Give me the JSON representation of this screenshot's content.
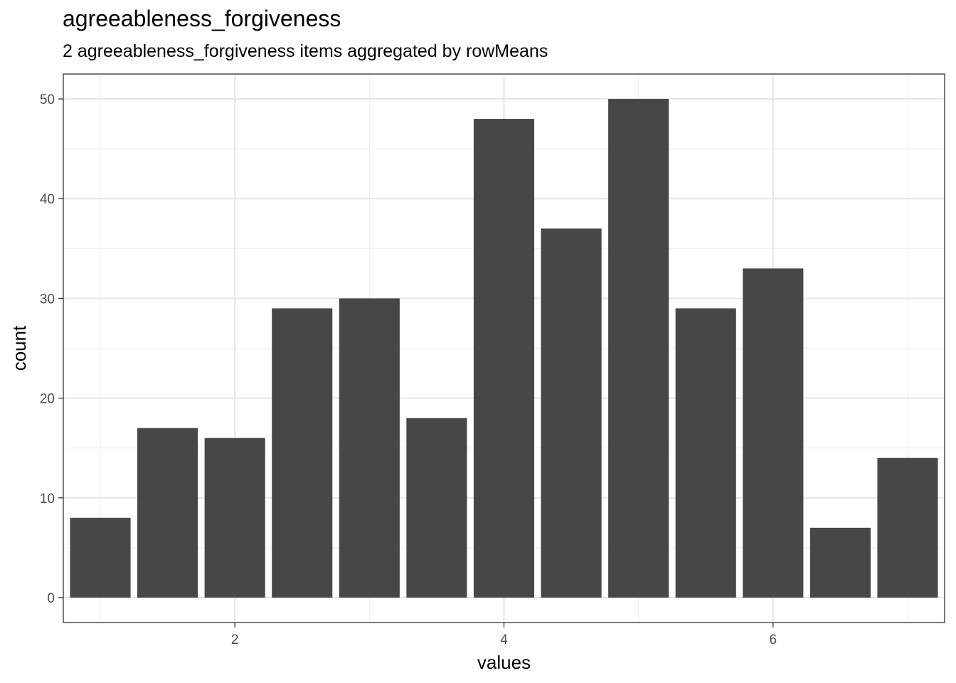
{
  "chart_data": {
    "type": "bar",
    "title": "agreeableness_forgiveness",
    "subtitle": "2 agreeableness_forgiveness items aggregated by rowMeans",
    "xlabel": "values",
    "ylabel": "count",
    "x": [
      1,
      1.5,
      2,
      2.5,
      3,
      3.5,
      4,
      4.5,
      5,
      5.5,
      6,
      6.5,
      7
    ],
    "values": [
      8,
      17,
      16,
      29,
      30,
      18,
      48,
      37,
      50,
      29,
      33,
      7,
      14
    ],
    "xlim": [
      0.725,
      7.275
    ],
    "ylim": [
      -2.5,
      52.5
    ],
    "x_ticks": [
      2,
      4,
      6
    ],
    "y_ticks": [
      0,
      10,
      20,
      30,
      40,
      50
    ],
    "bar_color": "#474747",
    "grid": true,
    "theme": "bw"
  }
}
